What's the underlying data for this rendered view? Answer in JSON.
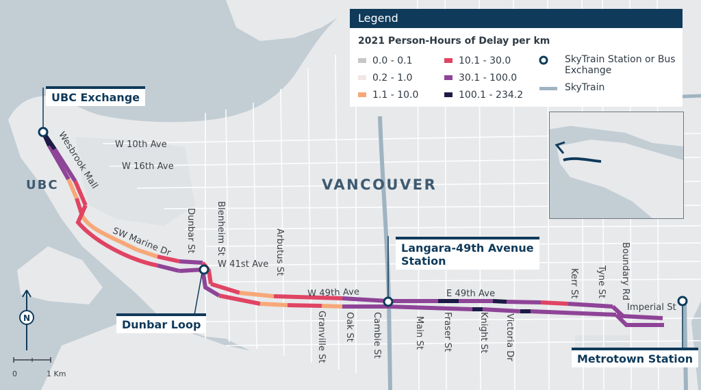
{
  "legend": {
    "title": "Legend",
    "subtitle": "2021 Person-Hours of Delay per km",
    "items": [
      {
        "label": "0.0 - 0.1",
        "color": "#c7c7c7"
      },
      {
        "label": "0.2 - 1.0",
        "color": "#f2e6e6"
      },
      {
        "label": "1.1 - 10.0",
        "color": "#f7a878"
      },
      {
        "label": "10.1 - 30.0",
        "color": "#e04463"
      },
      {
        "label": "30.1 - 100.0",
        "color": "#8e4497"
      },
      {
        "label": "100.1 - 234.2",
        "color": "#1d1b46"
      }
    ],
    "station_label": "SkyTrain Station or Bus Exchange",
    "skytrain_label": "SkyTrain"
  },
  "callouts": {
    "ubc_exchange": "UBC Exchange",
    "dunbar_loop": "Dunbar Loop",
    "langara_line1": "Langara-49th Avenue",
    "langara_line2": "Station",
    "metrotown": "Metrotown Station"
  },
  "areas": {
    "vancouver": "VANCOUVER",
    "ubc": "UBC"
  },
  "streets": {
    "w10": "W 10th Ave",
    "w16": "W 16th Ave",
    "wesbrook": "Wesbrook Mall",
    "sw_marine": "SW Marine Dr",
    "dunbar": "Dunbar St",
    "blenheim": "Blenheim St",
    "arbutus": "Arbutus St",
    "w41": "W 41st Ave",
    "w49": "W 49th Ave",
    "e49": "E 49th Ave",
    "granville": "Granville St",
    "oak": "Oak St",
    "cambie": "Cambie St",
    "main": "Main St",
    "fraser": "Fraser St",
    "knight": "Knight St",
    "victoria": "Victoria Dr",
    "kerr": "Kerr St",
    "tyne": "Tyne St",
    "boundary": "Boundary Rd",
    "imperial": "Imperial St"
  },
  "scale": {
    "zero": "0",
    "one": "1 Km"
  },
  "north": "N",
  "colors": {
    "water": "#c3cdd4",
    "land": "#e7e9eb",
    "road": "#ffffff",
    "skytrain": "#9fb3c1",
    "station": "#0f3a5a",
    "accent": "#0f3a5a"
  }
}
